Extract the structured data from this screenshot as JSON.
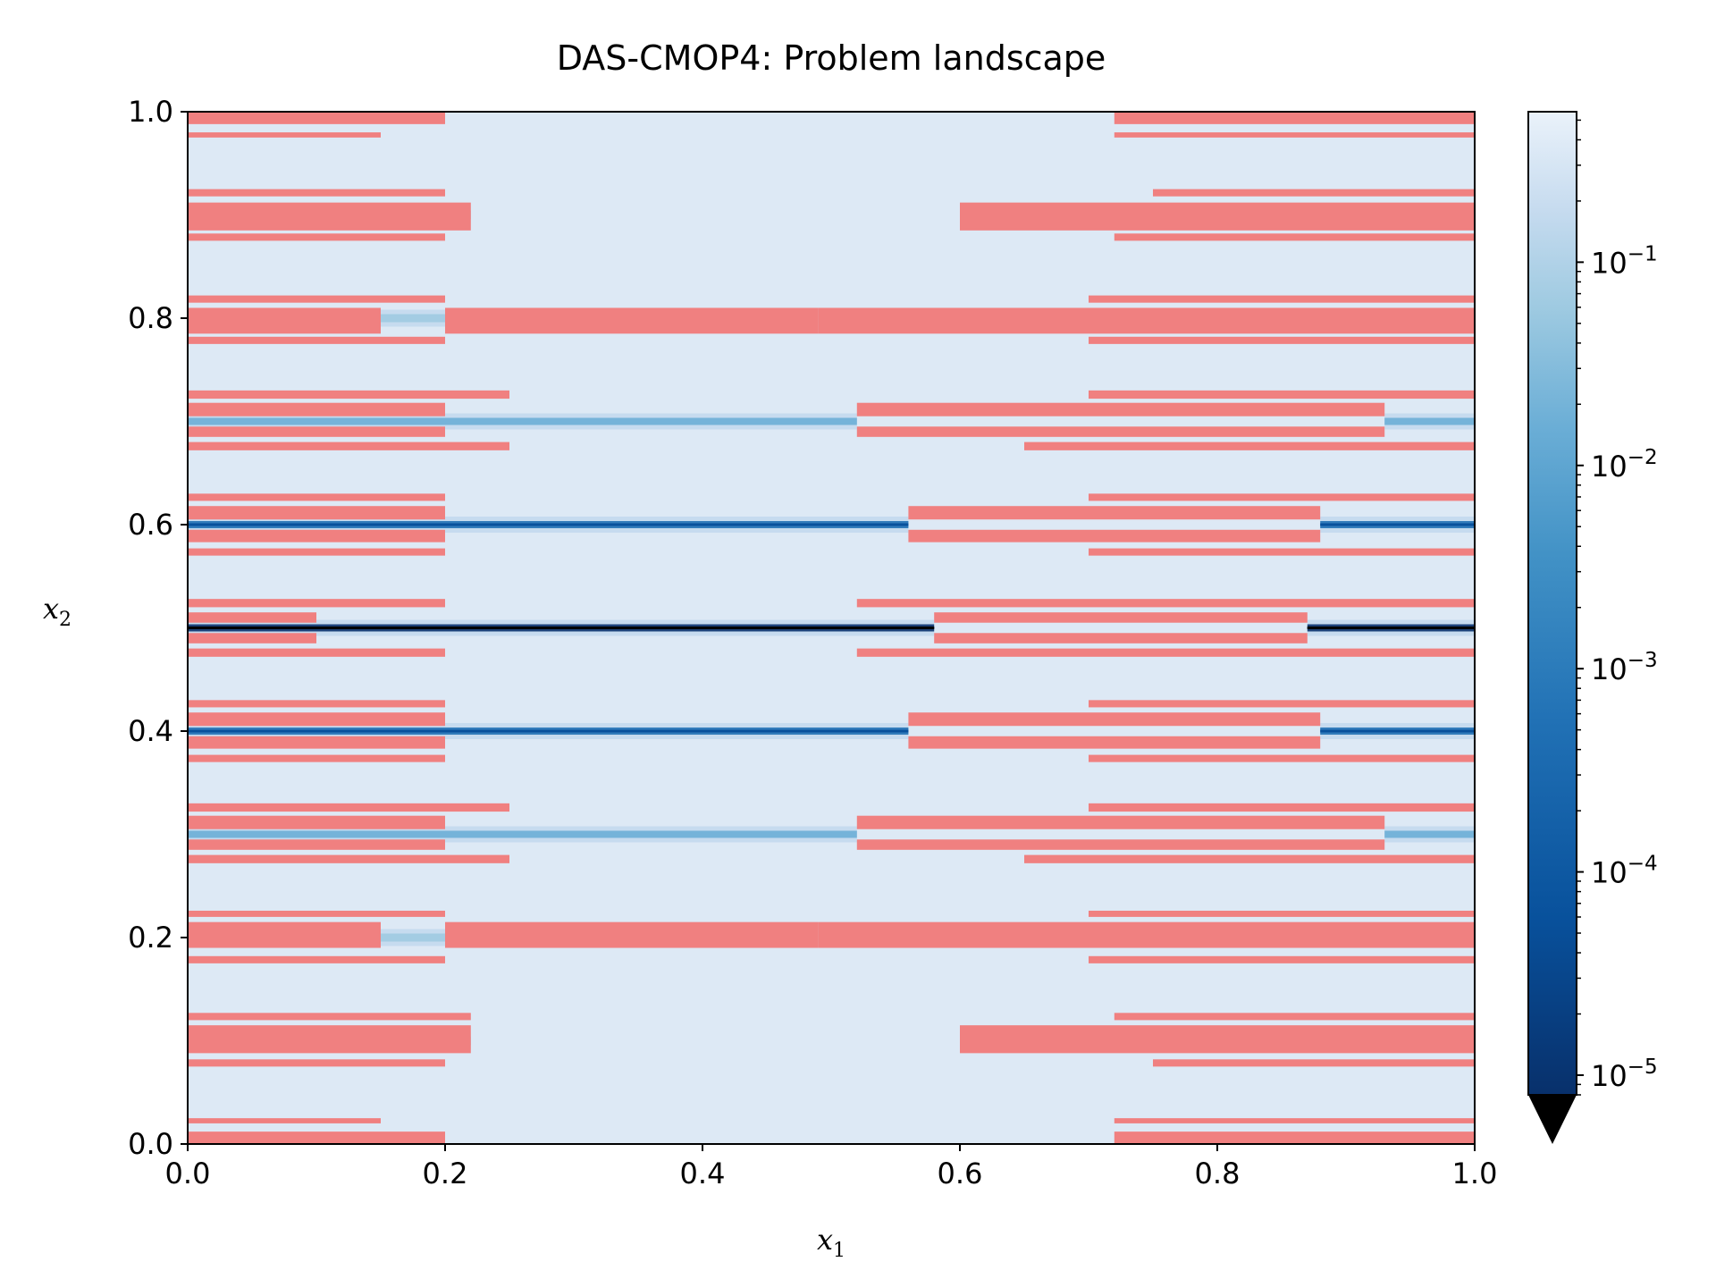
{
  "chart_data": {
    "type": "heatmap",
    "title": "DAS-CMOP4: Problem landscape",
    "xlabel_var": "x",
    "xlabel_sub": "1",
    "ylabel_var": "x",
    "ylabel_sub": "2",
    "xlim": [
      0.0,
      1.0
    ],
    "ylim": [
      0.0,
      1.0
    ],
    "xticks": [
      "0.0",
      "0.2",
      "0.4",
      "0.6",
      "0.8",
      "1.0"
    ],
    "yticks": [
      "0.0",
      "0.2",
      "0.4",
      "0.6",
      "0.8",
      "1.0"
    ],
    "colormap": "Blues_r",
    "colorbar": {
      "scale": "log",
      "range": [
        8e-06,
        0.55
      ],
      "ticks": [
        {
          "value": 0.1,
          "base": "10",
          "exp": "−1"
        },
        {
          "value": 0.01,
          "base": "10",
          "exp": "−2"
        },
        {
          "value": 0.001,
          "base": "10",
          "exp": "−3"
        },
        {
          "value": 0.0001,
          "base": "10",
          "exp": "−4"
        },
        {
          "value": 1e-05,
          "base": "10",
          "exp": "−5"
        }
      ],
      "extend": "min"
    },
    "infeasible_color": "#f08080",
    "field_colors": {
      "background": "#dde9f5",
      "light": "#c6dbef",
      "mid": "#9ecae1",
      "medium": "#6baed6",
      "dark": "#2171b5",
      "darker": "#08519c",
      "min": "#08306b",
      "optimum": "#000000"
    },
    "valleys": [
      {
        "y": 0.1,
        "depth": 1,
        "left_end": 0.22,
        "right_start": 0.6
      },
      {
        "y": 0.2,
        "depth": 2,
        "left_end": 0.49,
        "right_start": 1.0
      },
      {
        "y": 0.3,
        "depth": 3,
        "left_end": 0.52,
        "right_start": 0.93
      },
      {
        "y": 0.4,
        "depth": 4,
        "left_end": 0.56,
        "right_start": 0.88
      },
      {
        "y": 0.5,
        "depth": 5,
        "left_end": 0.58,
        "right_start": 0.87
      },
      {
        "y": 0.6,
        "depth": 4,
        "left_end": 0.56,
        "right_start": 0.88
      },
      {
        "y": 0.7,
        "depth": 3,
        "left_end": 0.52,
        "right_start": 0.93
      },
      {
        "y": 0.8,
        "depth": 2,
        "left_end": 0.49,
        "right_start": 1.0
      },
      {
        "y": 0.9,
        "depth": 1,
        "left_end": 0.22,
        "right_start": 0.6
      }
    ],
    "infeasible_bands": [
      {
        "y0": 0.0,
        "y1": 0.012,
        "x_ranges": [
          [
            0.0,
            0.2
          ],
          [
            0.72,
            1.0
          ]
        ]
      },
      {
        "y0": 0.02,
        "y1": 0.025,
        "x_ranges": [
          [
            0.0,
            0.15
          ],
          [
            0.72,
            1.0
          ]
        ]
      },
      {
        "y0": 0.075,
        "y1": 0.082,
        "x_ranges": [
          [
            0.0,
            0.2
          ],
          [
            0.75,
            1.0
          ]
        ]
      },
      {
        "y0": 0.088,
        "y1": 0.115,
        "x_ranges": [
          [
            0.0,
            0.22
          ],
          [
            0.6,
            1.0
          ]
        ]
      },
      {
        "y0": 0.12,
        "y1": 0.127,
        "x_ranges": [
          [
            0.0,
            0.22
          ],
          [
            0.72,
            1.0
          ]
        ]
      },
      {
        "y0": 0.175,
        "y1": 0.182,
        "x_ranges": [
          [
            0.0,
            0.2
          ],
          [
            0.7,
            1.0
          ]
        ]
      },
      {
        "y0": 0.19,
        "y1": 0.215,
        "x_ranges": [
          [
            0.0,
            0.15
          ],
          [
            0.2,
            0.49
          ],
          [
            0.49,
            1.0
          ]
        ]
      },
      {
        "y0": 0.22,
        "y1": 0.226,
        "x_ranges": [
          [
            0.0,
            0.2
          ],
          [
            0.7,
            1.0
          ]
        ]
      },
      {
        "y0": 0.272,
        "y1": 0.28,
        "x_ranges": [
          [
            0.0,
            0.25
          ],
          [
            0.65,
            1.0
          ]
        ]
      },
      {
        "y0": 0.285,
        "y1": 0.295,
        "x_ranges": [
          [
            0.0,
            0.2
          ],
          [
            0.52,
            0.93
          ]
        ]
      },
      {
        "y0": 0.305,
        "y1": 0.318,
        "x_ranges": [
          [
            0.0,
            0.2
          ],
          [
            0.52,
            0.93
          ]
        ]
      },
      {
        "y0": 0.322,
        "y1": 0.33,
        "x_ranges": [
          [
            0.0,
            0.25
          ],
          [
            0.7,
            1.0
          ]
        ]
      },
      {
        "y0": 0.37,
        "y1": 0.377,
        "x_ranges": [
          [
            0.0,
            0.2
          ],
          [
            0.7,
            1.0
          ]
        ]
      },
      {
        "y0": 0.383,
        "y1": 0.395,
        "x_ranges": [
          [
            0.0,
            0.2
          ],
          [
            0.56,
            0.88
          ]
        ]
      },
      {
        "y0": 0.405,
        "y1": 0.418,
        "x_ranges": [
          [
            0.0,
            0.2
          ],
          [
            0.56,
            0.88
          ]
        ]
      },
      {
        "y0": 0.423,
        "y1": 0.43,
        "x_ranges": [
          [
            0.0,
            0.2
          ],
          [
            0.7,
            1.0
          ]
        ]
      },
      {
        "y0": 0.472,
        "y1": 0.48,
        "x_ranges": [
          [
            0.0,
            0.2
          ],
          [
            0.52,
            1.0
          ]
        ]
      },
      {
        "y0": 0.485,
        "y1": 0.495,
        "x_ranges": [
          [
            0.0,
            0.1
          ],
          [
            0.58,
            0.87
          ]
        ]
      },
      {
        "y0": 0.505,
        "y1": 0.515,
        "x_ranges": [
          [
            0.0,
            0.1
          ],
          [
            0.58,
            0.87
          ]
        ]
      },
      {
        "y0": 0.52,
        "y1": 0.528,
        "x_ranges": [
          [
            0.0,
            0.2
          ],
          [
            0.52,
            1.0
          ]
        ]
      },
      {
        "y0": 0.57,
        "y1": 0.577,
        "x_ranges": [
          [
            0.0,
            0.2
          ],
          [
            0.7,
            1.0
          ]
        ]
      },
      {
        "y0": 0.583,
        "y1": 0.595,
        "x_ranges": [
          [
            0.0,
            0.2
          ],
          [
            0.56,
            0.88
          ]
        ]
      },
      {
        "y0": 0.605,
        "y1": 0.618,
        "x_ranges": [
          [
            0.0,
            0.2
          ],
          [
            0.56,
            0.88
          ]
        ]
      },
      {
        "y0": 0.623,
        "y1": 0.63,
        "x_ranges": [
          [
            0.0,
            0.2
          ],
          [
            0.7,
            1.0
          ]
        ]
      },
      {
        "y0": 0.672,
        "y1": 0.68,
        "x_ranges": [
          [
            0.0,
            0.25
          ],
          [
            0.65,
            1.0
          ]
        ]
      },
      {
        "y0": 0.685,
        "y1": 0.695,
        "x_ranges": [
          [
            0.0,
            0.2
          ],
          [
            0.52,
            0.93
          ]
        ]
      },
      {
        "y0": 0.705,
        "y1": 0.718,
        "x_ranges": [
          [
            0.0,
            0.2
          ],
          [
            0.52,
            0.93
          ]
        ]
      },
      {
        "y0": 0.722,
        "y1": 0.73,
        "x_ranges": [
          [
            0.0,
            0.25
          ],
          [
            0.7,
            1.0
          ]
        ]
      },
      {
        "y0": 0.775,
        "y1": 0.782,
        "x_ranges": [
          [
            0.0,
            0.2
          ],
          [
            0.7,
            1.0
          ]
        ]
      },
      {
        "y0": 0.785,
        "y1": 0.81,
        "x_ranges": [
          [
            0.0,
            0.15
          ],
          [
            0.2,
            0.49
          ],
          [
            0.49,
            1.0
          ]
        ]
      },
      {
        "y0": 0.815,
        "y1": 0.822,
        "x_ranges": [
          [
            0.0,
            0.2
          ],
          [
            0.7,
            1.0
          ]
        ]
      },
      {
        "y0": 0.875,
        "y1": 0.882,
        "x_ranges": [
          [
            0.0,
            0.2
          ],
          [
            0.72,
            1.0
          ]
        ]
      },
      {
        "y0": 0.885,
        "y1": 0.912,
        "x_ranges": [
          [
            0.0,
            0.22
          ],
          [
            0.6,
            1.0
          ]
        ]
      },
      {
        "y0": 0.918,
        "y1": 0.925,
        "x_ranges": [
          [
            0.0,
            0.2
          ],
          [
            0.75,
            1.0
          ]
        ]
      },
      {
        "y0": 0.975,
        "y1": 0.98,
        "x_ranges": [
          [
            0.0,
            0.15
          ],
          [
            0.72,
            1.0
          ]
        ]
      },
      {
        "y0": 0.988,
        "y1": 1.0,
        "x_ranges": [
          [
            0.0,
            0.2
          ],
          [
            0.72,
            1.0
          ]
        ]
      }
    ]
  }
}
